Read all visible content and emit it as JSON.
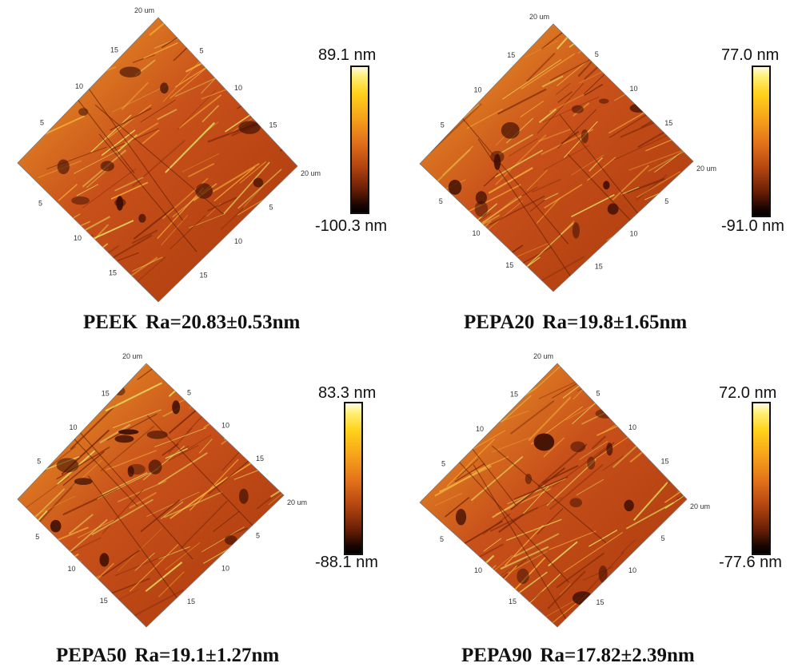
{
  "colors": {
    "surface_dark": "#3a0c02",
    "surface_mid": "#c8501a",
    "surface_light": "#f0a02a",
    "surface_highlight": "#e8f06a",
    "colorbar_top": "#fffbe6",
    "colorbar_bottom": "#000000"
  },
  "panels": [
    {
      "sample": "PEEK",
      "ra": "Ra=20.83±0.53nm",
      "scale_max": "89.1 nm",
      "scale_min": "-100.3 nm",
      "axis": {
        "corner": "20 um",
        "ticks": [
          "5",
          "10",
          "15"
        ],
        "right_end": "20 um"
      }
    },
    {
      "sample": "PEPA20",
      "ra": "Ra=19.8±1.65nm",
      "scale_max": "77.0 nm",
      "scale_min": "-91.0 nm",
      "axis": {
        "corner": "20 um",
        "ticks": [
          "5",
          "10",
          "15"
        ],
        "right_end": "20 um"
      }
    },
    {
      "sample": "PEPA50",
      "ra": "Ra=19.1±1.27nm",
      "scale_max": "83.3 nm",
      "scale_min": "-88.1 nm",
      "axis": {
        "corner": "20 um",
        "ticks": [
          "5",
          "10",
          "15"
        ],
        "right_end": "20 um"
      }
    },
    {
      "sample": "PEPA90",
      "ra": "Ra=17.82±2.39nm",
      "scale_max": "72.0 nm",
      "scale_min": "-77.6 nm",
      "axis": {
        "corner": "20 um",
        "ticks": [
          "5",
          "10",
          "15"
        ],
        "right_end": "20 um"
      }
    }
  ]
}
